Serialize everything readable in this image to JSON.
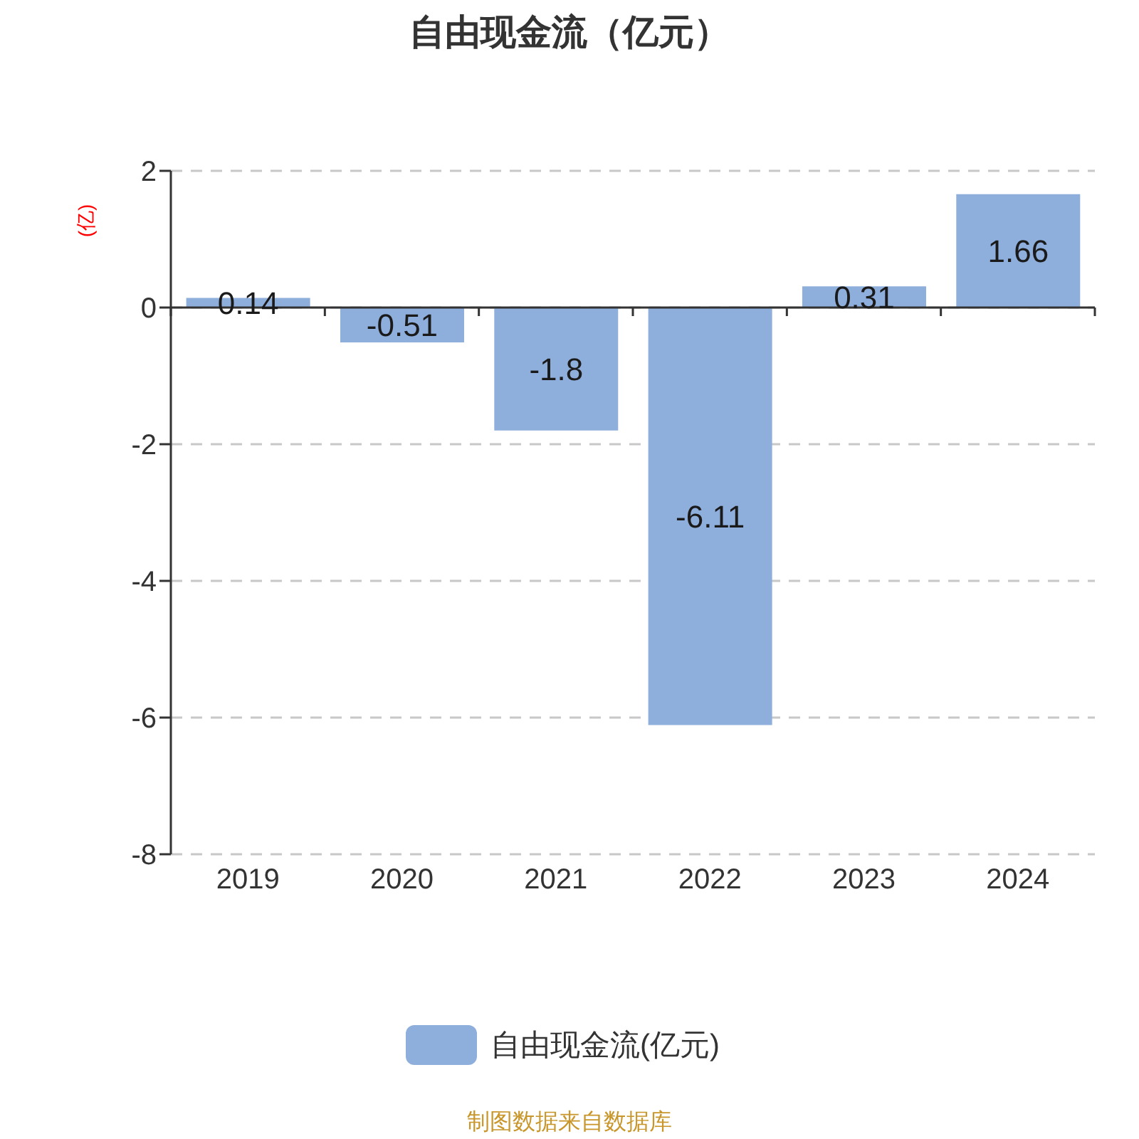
{
  "chart_data": {
    "type": "bar",
    "title": "自由现金流（亿元）",
    "ylabel": "(亿)",
    "categories": [
      "2019",
      "2020",
      "2021",
      "2022",
      "2023",
      "2024"
    ],
    "series": [
      {
        "name": "自由现金流(亿元)",
        "color": "#8eaedb",
        "values": [
          0.14,
          -0.51,
          -1.8,
          -6.11,
          0.31,
          1.66
        ]
      }
    ],
    "ylim": [
      -8,
      2
    ],
    "yticks": [
      -8,
      -6,
      -4,
      -2,
      0,
      2
    ],
    "grid": "y",
    "legend": "bottom",
    "data_labels": true,
    "annotations": [
      "制图数据来自数据库"
    ]
  }
}
